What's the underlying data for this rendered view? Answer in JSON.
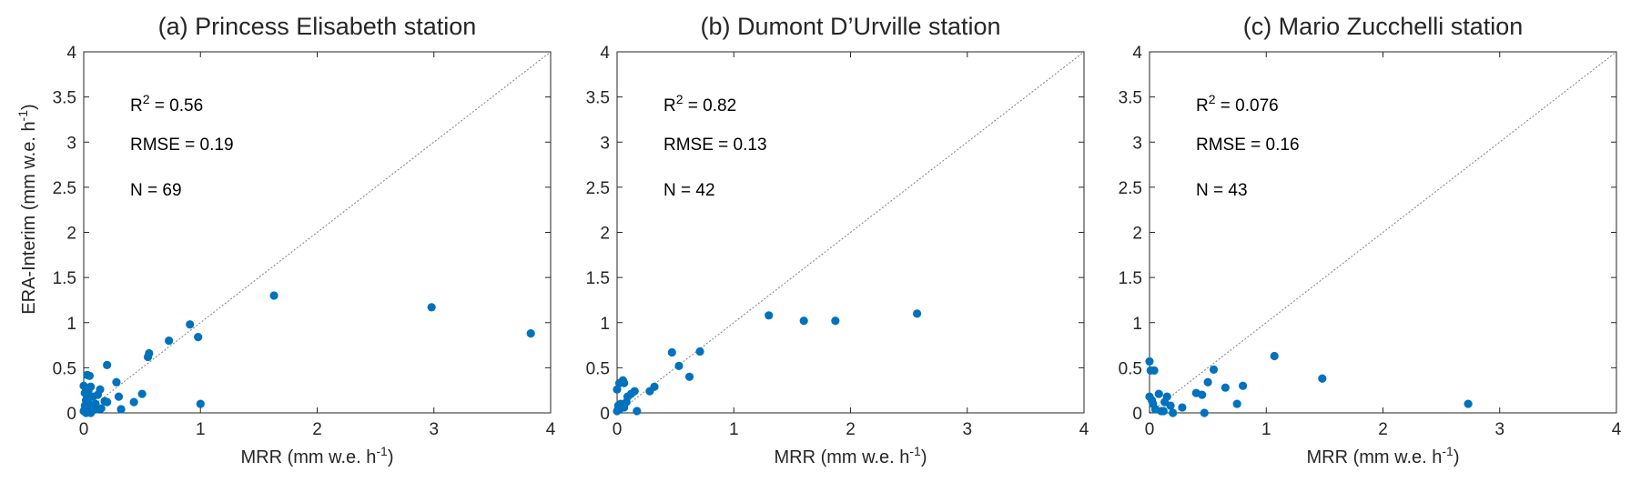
{
  "figure": {
    "shared_ylabel_text": "ERA-Interim (mm w.e. h",
    "shared_ylabel_sup": "-1",
    "shared_ylabel_close": ")"
  },
  "colors": {
    "point": "#0072BD",
    "axis": "#262626",
    "diagonal": "#808080"
  },
  "chart_data": [
    {
      "type": "scatter",
      "title": "(a) Princess Elisabeth station",
      "xlabel": "MRR (mm w.e. h",
      "xlabel_sup": "-1",
      "xlabel_close": ")",
      "xlim": [
        0,
        4
      ],
      "ylim": [
        0,
        4
      ],
      "xticks": [
        "0",
        "1",
        "2",
        "3",
        "4"
      ],
      "yticks": [
        "0",
        "0.5",
        "1",
        "1.5",
        "2",
        "2.5",
        "3",
        "3.5",
        "4"
      ],
      "reference_line": "1:1",
      "stats": {
        "r2_label": "R",
        "r2_sup": "2",
        "r2_value": " = 0.56",
        "rmse": "RMSE = 0.19",
        "n": "N = 69"
      },
      "points": [
        [
          0.0,
          0.02
        ],
        [
          0.01,
          0.08
        ],
        [
          0.02,
          0.14
        ],
        [
          0.0,
          0.3
        ],
        [
          0.03,
          0.42
        ],
        [
          0.05,
          0.41
        ],
        [
          0.01,
          0.22
        ],
        [
          0.03,
          0.18
        ],
        [
          0.05,
          0.05
        ],
        [
          0.06,
          0.29
        ],
        [
          0.04,
          0.11
        ],
        [
          0.08,
          0.03
        ],
        [
          0.02,
          0.0
        ],
        [
          0.1,
          0.1
        ],
        [
          0.12,
          0.2
        ],
        [
          0.14,
          0.26
        ],
        [
          0.11,
          0.04
        ],
        [
          0.08,
          0.18
        ],
        [
          0.15,
          0.05
        ],
        [
          0.18,
          0.13
        ],
        [
          0.2,
          0.12
        ],
        [
          0.2,
          0.53
        ],
        [
          0.28,
          0.34
        ],
        [
          0.3,
          0.18
        ],
        [
          0.32,
          0.04
        ],
        [
          0.43,
          0.12
        ],
        [
          0.5,
          0.21
        ],
        [
          0.55,
          0.62
        ],
        [
          0.56,
          0.66
        ],
        [
          0.73,
          0.8
        ],
        [
          0.91,
          0.98
        ],
        [
          0.98,
          0.84
        ],
        [
          1.0,
          0.1
        ],
        [
          1.63,
          1.3
        ],
        [
          2.98,
          1.17
        ],
        [
          3.83,
          0.88
        ],
        [
          0.02,
          0.06
        ],
        [
          0.06,
          0.0
        ],
        [
          0.09,
          0.07
        ],
        [
          0.04,
          0.25
        ]
      ]
    },
    {
      "type": "scatter",
      "title": "(b) Dumont D’Urville station",
      "xlabel": "MRR (mm w.e. h",
      "xlabel_sup": "-1",
      "xlabel_close": ")",
      "xlim": [
        0,
        4
      ],
      "ylim": [
        0,
        4
      ],
      "xticks": [
        "0",
        "1",
        "2",
        "3",
        "4"
      ],
      "yticks": [
        "0",
        "0.5",
        "1",
        "1.5",
        "2",
        "2.5",
        "3",
        "3.5",
        "4"
      ],
      "reference_line": "1:1",
      "stats": {
        "r2_label": "R",
        "r2_sup": "2",
        "r2_value": " = 0.82",
        "rmse": "RMSE = 0.13",
        "n": "N = 42"
      },
      "points": [
        [
          0.0,
          0.02
        ],
        [
          0.01,
          0.08
        ],
        [
          0.0,
          0.26
        ],
        [
          0.02,
          0.33
        ],
        [
          0.05,
          0.36
        ],
        [
          0.06,
          0.33
        ],
        [
          0.03,
          0.1
        ],
        [
          0.06,
          0.06
        ],
        [
          0.09,
          0.18
        ],
        [
          0.12,
          0.21
        ],
        [
          0.15,
          0.24
        ],
        [
          0.17,
          0.02
        ],
        [
          0.28,
          0.24
        ],
        [
          0.32,
          0.29
        ],
        [
          0.47,
          0.67
        ],
        [
          0.53,
          0.52
        ],
        [
          0.62,
          0.4
        ],
        [
          0.71,
          0.68
        ],
        [
          1.3,
          1.08
        ],
        [
          1.6,
          1.02
        ],
        [
          1.87,
          1.02
        ],
        [
          2.57,
          1.1
        ],
        [
          0.02,
          0.04
        ],
        [
          0.08,
          0.12
        ]
      ]
    },
    {
      "type": "scatter",
      "title": "(c) Mario Zucchelli station",
      "xlabel": "MRR (mm w.e. h",
      "xlabel_sup": "-1",
      "xlabel_close": ")",
      "xlim": [
        0,
        4
      ],
      "ylim": [
        0,
        4
      ],
      "xticks": [
        "0",
        "1",
        "2",
        "3",
        "4"
      ],
      "yticks": [
        "0",
        "0.5",
        "1",
        "1.5",
        "2",
        "2.5",
        "3",
        "3.5",
        "4"
      ],
      "reference_line": "1:1",
      "stats": {
        "r2_label": "R",
        "r2_sup": "2",
        "r2_value": " = 0.076",
        "rmse": "RMSE = 0.16",
        "n": "N = 43"
      },
      "points": [
        [
          0.0,
          0.57
        ],
        [
          0.01,
          0.47
        ],
        [
          0.04,
          0.47
        ],
        [
          0.0,
          0.18
        ],
        [
          0.03,
          0.1
        ],
        [
          0.05,
          0.04
        ],
        [
          0.08,
          0.21
        ],
        [
          0.1,
          0.02
        ],
        [
          0.13,
          0.12
        ],
        [
          0.15,
          0.18
        ],
        [
          0.18,
          0.08
        ],
        [
          0.2,
          0.0
        ],
        [
          0.28,
          0.06
        ],
        [
          0.4,
          0.22
        ],
        [
          0.45,
          0.2
        ],
        [
          0.47,
          0.0
        ],
        [
          0.5,
          0.34
        ],
        [
          0.55,
          0.48
        ],
        [
          0.65,
          0.28
        ],
        [
          0.75,
          0.1
        ],
        [
          0.8,
          0.3
        ],
        [
          1.07,
          0.63
        ],
        [
          1.48,
          0.38
        ],
        [
          2.73,
          0.1
        ],
        [
          0.02,
          0.14
        ],
        [
          0.12,
          0.02
        ]
      ]
    }
  ]
}
